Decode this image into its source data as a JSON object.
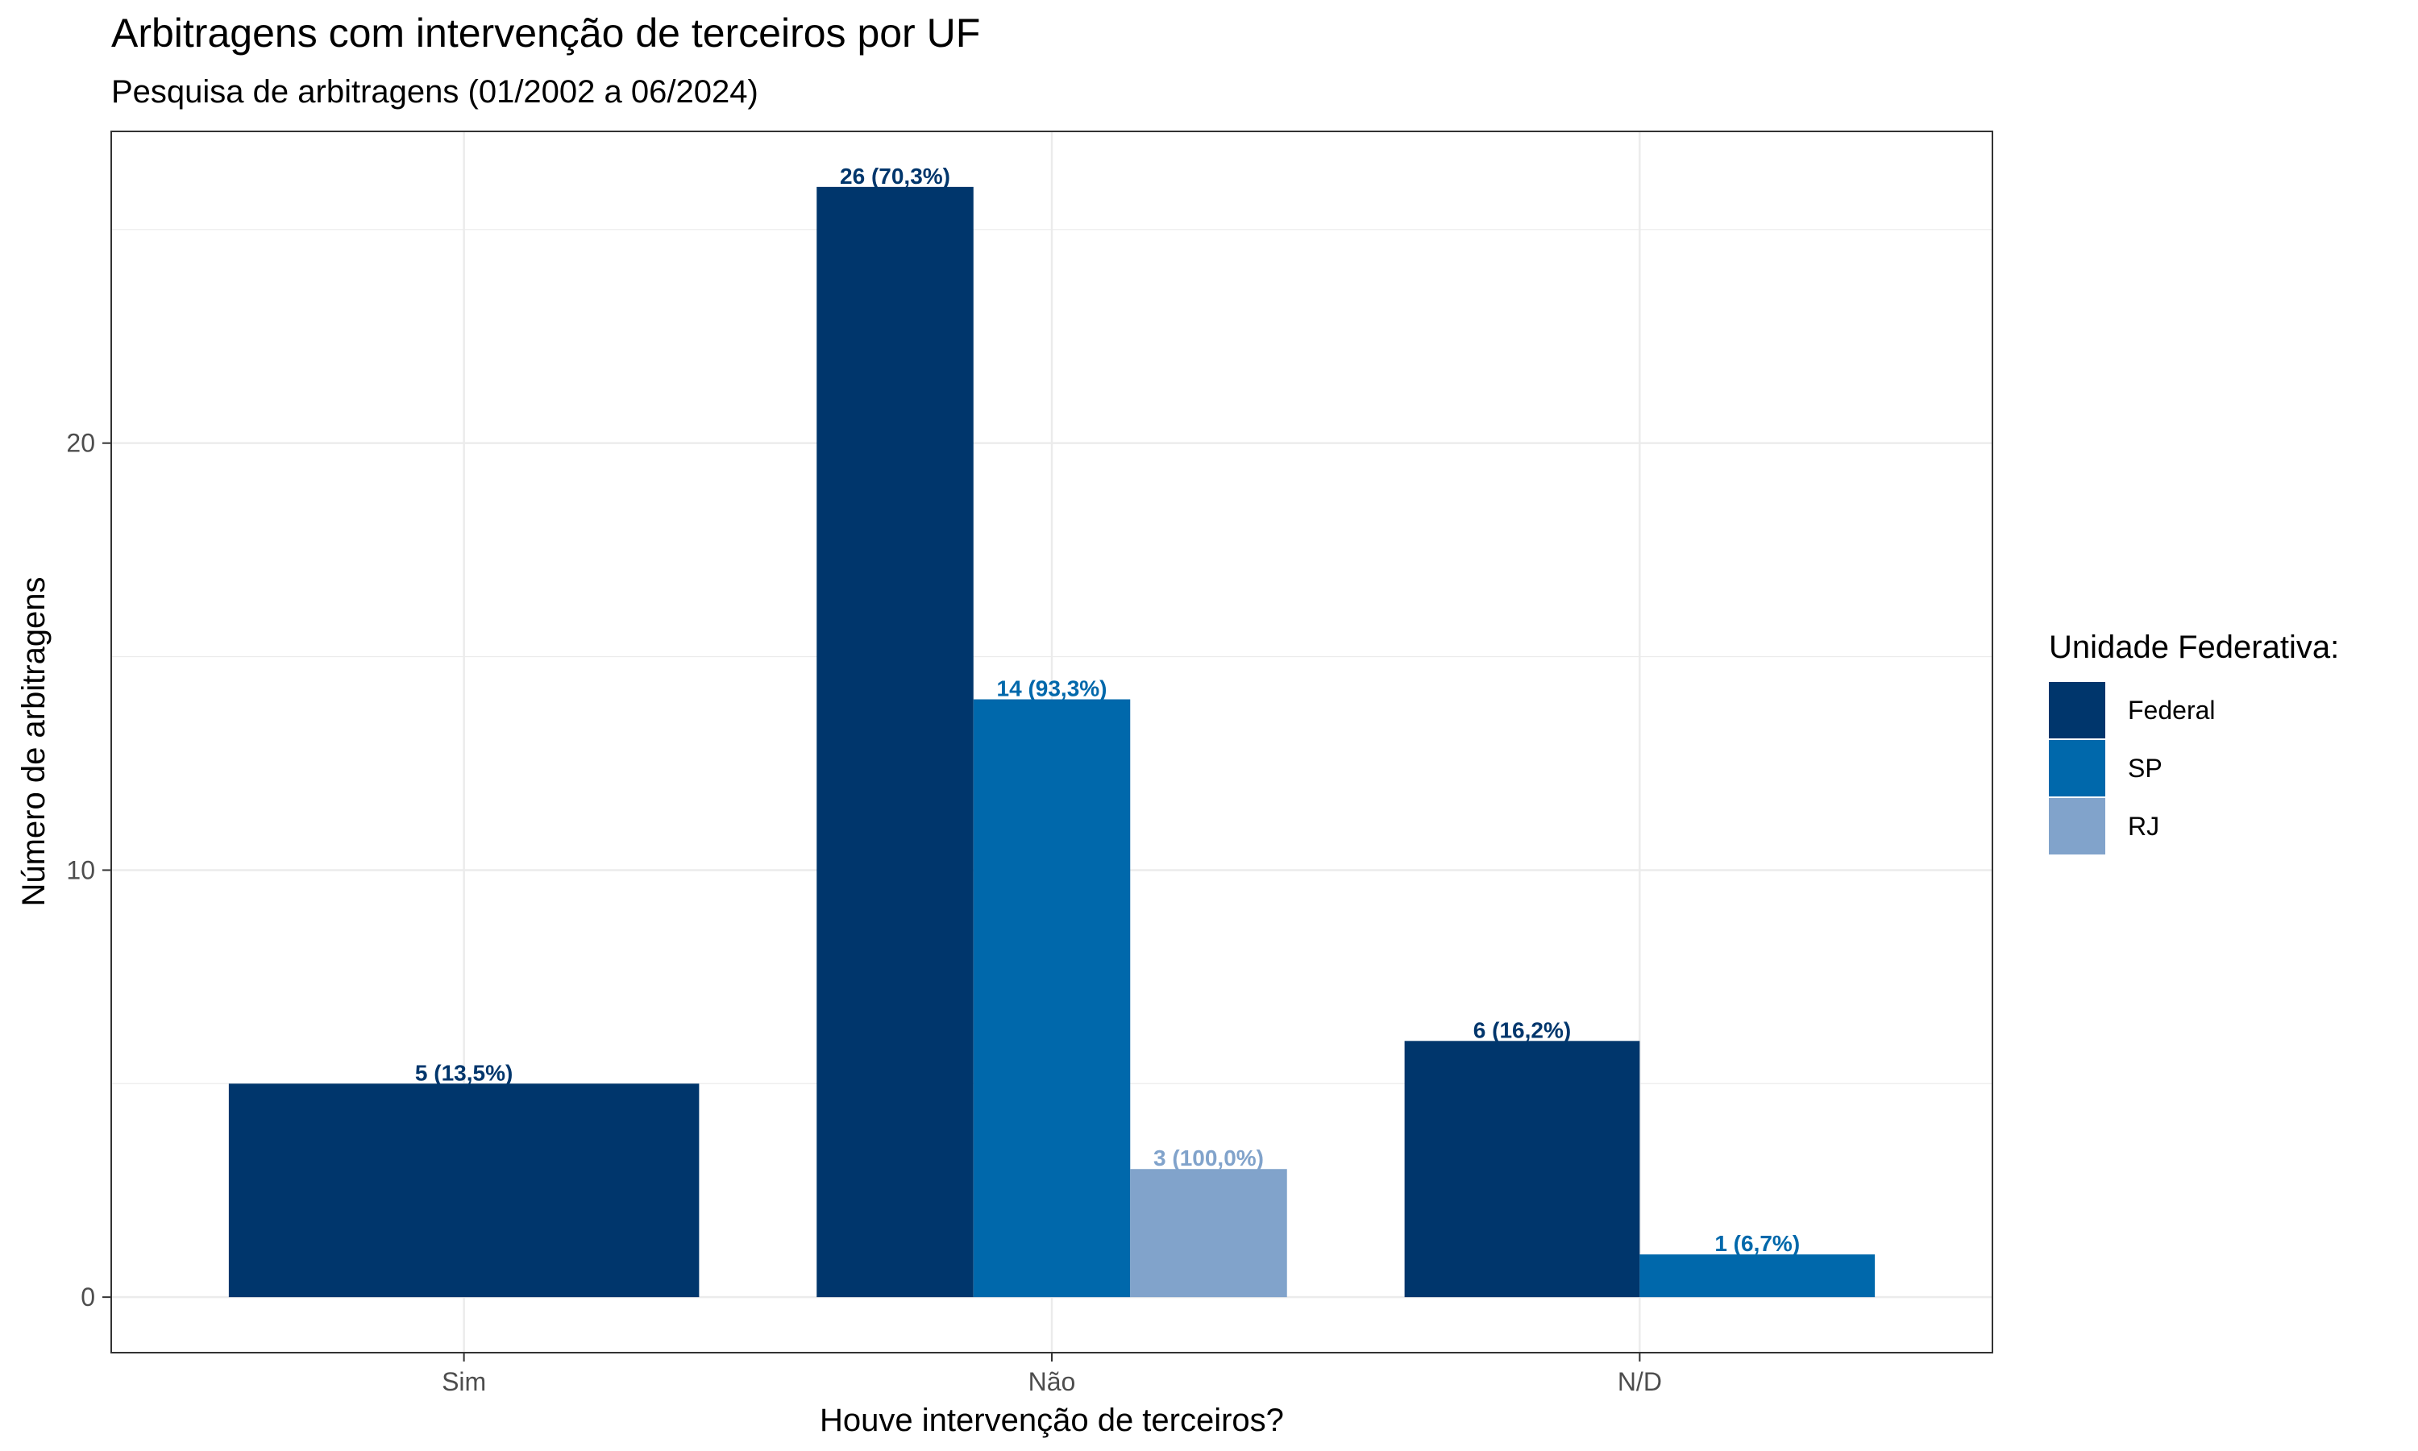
{
  "chart_data": {
    "type": "bar",
    "title": "Arbitragens com intervenção de terceiros por UF",
    "subtitle": "Pesquisa de arbitragens (01/2002 a 06/2024)",
    "xlabel": "Houve intervenção de terceiros?",
    "ylabel": "Número de arbitragens",
    "categories": [
      "Sim",
      "Não",
      "N/D"
    ],
    "ylim": [
      -1.3,
      27.3
    ],
    "yticks": [
      0,
      10,
      20
    ],
    "ytick_labels": [
      "0",
      "10",
      "20"
    ],
    "grid": true,
    "legend": {
      "title": "Unidade Federativa:",
      "position": "right"
    },
    "series": [
      {
        "name": "Federal",
        "color": "#00366c",
        "values": [
          5,
          26,
          6
        ],
        "labels": [
          "5 (13,5%)",
          "26 (70,3%)",
          "6 (16,2%)"
        ]
      },
      {
        "name": "SP",
        "color": "#0068ab",
        "values": [
          null,
          14,
          1
        ],
        "labels": [
          "",
          "14 (93,3%)",
          "1 (6,7%)"
        ]
      },
      {
        "name": "RJ",
        "color": "#81a3cb",
        "values": [
          null,
          3,
          null
        ],
        "labels": [
          "",
          "3 (100,0%)",
          ""
        ]
      }
    ]
  }
}
